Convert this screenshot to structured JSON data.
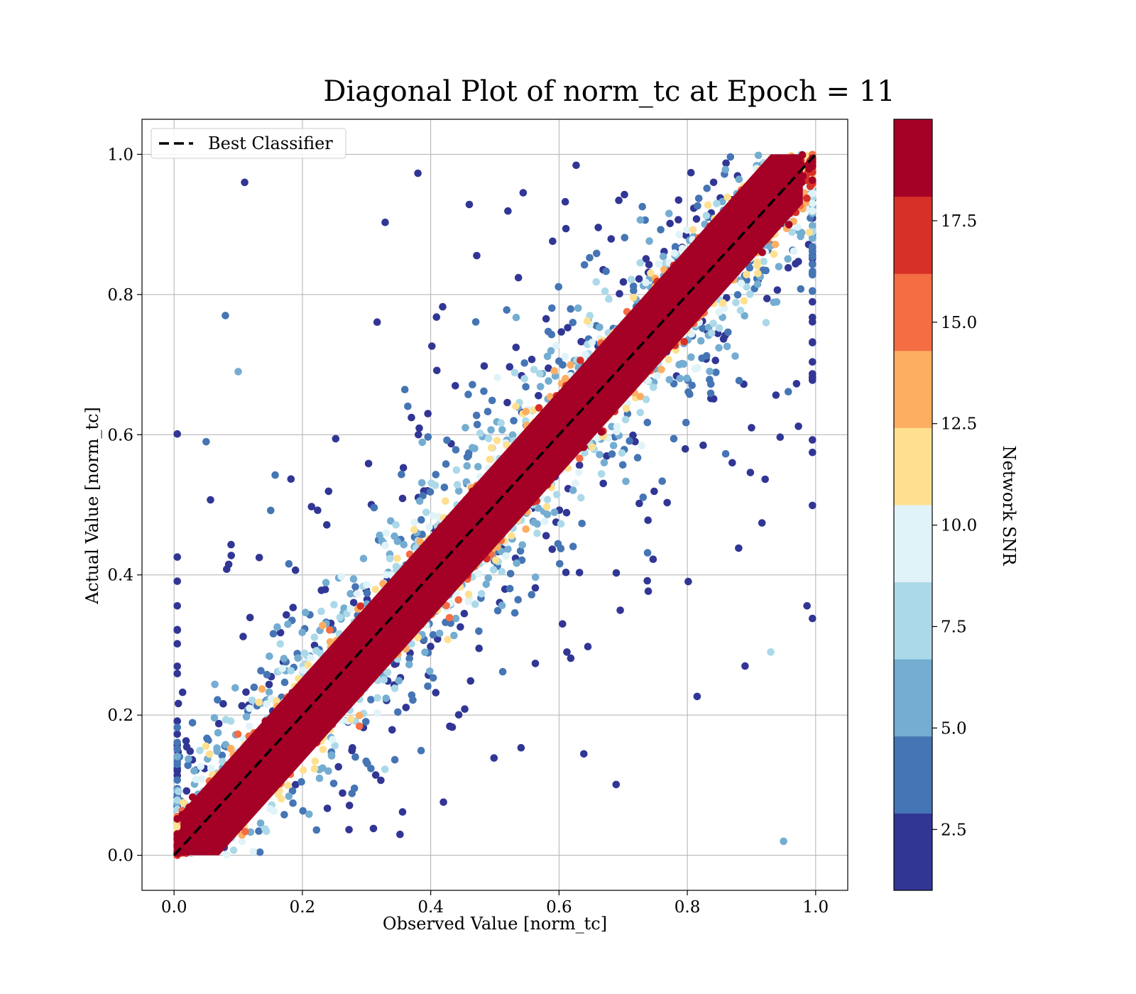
{
  "chart_data": {
    "type": "scatter",
    "title": "Diagonal Plot of norm_tc at Epoch = 11",
    "xlabel": "Observed Value [norm_tc]",
    "ylabel": "Actual Value [norm_tc]",
    "xlim": [
      -0.05,
      1.05
    ],
    "ylim": [
      -0.05,
      1.05
    ],
    "xticks": [
      "0.0",
      "0.2",
      "0.4",
      "0.6",
      "0.8",
      "1.0"
    ],
    "yticks": [
      "0.0",
      "0.2",
      "0.4",
      "0.6",
      "0.8",
      "1.0"
    ],
    "grid": true,
    "legend": {
      "placement": "top-left",
      "entries": [
        {
          "label": "Best Classifier",
          "style": "black dashed line"
        }
      ]
    },
    "reference_line": {
      "name": "Best Classifier",
      "x": [
        0.0,
        1.0
      ],
      "y": [
        0.0,
        1.0
      ],
      "color": "#000000"
    },
    "colorbar": {
      "label": "Network SNR",
      "range": [
        1.0,
        20.0
      ],
      "ticks": [
        "2.5",
        "5.0",
        "7.5",
        "10.0",
        "12.5",
        "15.0",
        "17.5"
      ],
      "colors": [
        "#313695",
        "#4575b4",
        "#74add1",
        "#abd9e9",
        "#e0f3f8",
        "#fee090",
        "#fdae61",
        "#f46d43",
        "#d73027",
        "#a50026"
      ]
    },
    "description_points": [
      {
        "x": 0.08,
        "y": 0.77,
        "snr": 4
      },
      {
        "x": 0.11,
        "y": 0.96,
        "snr": 2
      },
      {
        "x": 0.05,
        "y": 0.59,
        "snr": 3
      },
      {
        "x": 0.1,
        "y": 0.69,
        "snr": 6
      },
      {
        "x": 0.95,
        "y": 0.02,
        "snr": 5
      },
      {
        "x": 0.9,
        "y": 0.61,
        "snr": 2
      },
      {
        "x": 0.89,
        "y": 0.27,
        "snr": 2
      },
      {
        "x": 0.93,
        "y": 0.29,
        "snr": 7
      },
      {
        "x": 0.87,
        "y": 0.56,
        "snr": 2
      }
    ]
  }
}
